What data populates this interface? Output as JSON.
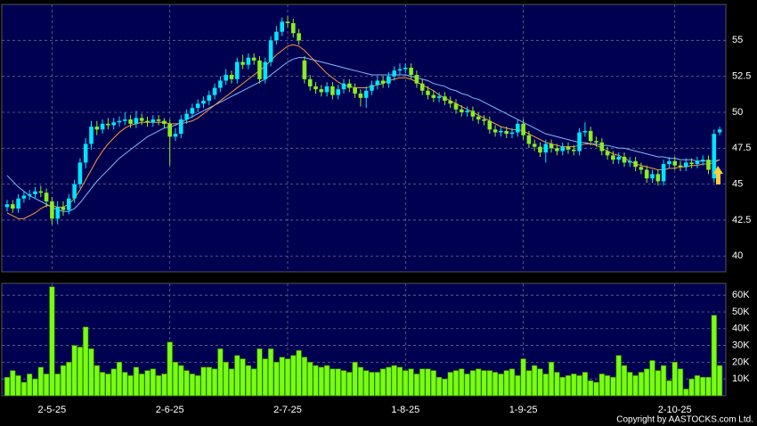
{
  "chart_data": [
    {
      "type": "candlestick",
      "categories": [
        null,
        null,
        null,
        null,
        null,
        null,
        null,
        null,
        "2-5-25",
        null,
        null,
        null,
        null,
        null,
        null,
        null,
        null,
        null,
        null,
        null,
        null,
        null,
        null,
        null,
        null,
        null,
        null,
        null,
        null,
        "2-6-25",
        null,
        null,
        null,
        null,
        null,
        null,
        null,
        null,
        null,
        null,
        null,
        null,
        null,
        null,
        null,
        null,
        null,
        null,
        null,
        null,
        "2-7-25",
        null,
        null,
        null,
        null,
        null,
        null,
        null,
        null,
        null,
        null,
        null,
        null,
        null,
        null,
        null,
        null,
        null,
        null,
        null,
        null,
        "1-8-25",
        null,
        null,
        null,
        null,
        null,
        null,
        null,
        null,
        null,
        null,
        null,
        null,
        null,
        null,
        null,
        null,
        null,
        null,
        null,
        null,
        "1-9-25",
        null,
        null,
        null,
        null,
        null,
        null,
        null,
        null,
        null,
        null,
        null,
        null,
        null,
        null,
        null,
        null,
        null,
        null,
        null,
        null,
        null,
        null,
        null,
        null,
        null,
        null,
        "2-10-25",
        null,
        null,
        null,
        null,
        null,
        null,
        null,
        null
      ],
      "open": [
        43.4,
        43.6,
        43.3,
        44.0,
        44.2,
        44.3,
        44.5,
        44.4,
        43.8,
        42.6,
        43.4,
        43.2,
        44.0,
        45.0,
        46.5,
        47.8,
        49.0,
        48.8,
        49.2,
        49.1,
        49.3,
        49.4,
        49.5,
        49.2,
        49.6,
        49.4,
        49.3,
        49.5,
        49.4,
        49.2,
        48.3,
        48.5,
        49.5,
        49.9,
        50.3,
        50.6,
        50.8,
        51.2,
        51.7,
        52.2,
        52.6,
        52.3,
        53.5,
        53.3,
        53.8,
        53.6,
        52.3,
        53.5,
        55.0,
        55.6,
        56.3,
        56.2,
        55.5,
        53.6,
        52.3,
        51.8,
        51.6,
        51.4,
        51.8,
        51.2,
        51.6,
        52.0,
        51.7,
        51.3,
        51.0,
        51.5,
        51.9,
        52.2,
        52.0,
        52.5,
        52.9,
        53.0,
        53.1,
        52.6,
        52.0,
        51.5,
        51.2,
        51.0,
        51.1,
        50.8,
        50.6,
        50.2,
        50.0,
        50.1,
        49.7,
        49.5,
        49.4,
        48.8,
        48.6,
        48.7,
        48.5,
        48.6,
        49.2,
        48.4,
        47.8,
        47.6,
        47.2,
        47.8,
        47.5,
        47.3,
        47.6,
        47.4,
        47.3,
        48.6,
        48.7,
        48.0,
        47.9,
        47.3,
        47.0,
        46.7,
        46.9,
        46.5,
        46.6,
        46.2,
        46.0,
        45.4,
        45.7,
        45.2,
        46.4,
        46.6,
        46.3,
        46.2,
        46.5,
        46.4,
        46.6,
        46.7,
        45.4,
        48.6
      ],
      "high": [
        43.9,
        43.9,
        44.3,
        44.5,
        44.6,
        44.8,
        44.9,
        44.7,
        44.1,
        43.8,
        43.8,
        44.3,
        45.3,
        46.8,
        48.2,
        49.4,
        49.4,
        49.5,
        49.6,
        49.6,
        49.7,
        50.0,
        49.8,
        50.1,
        49.9,
        49.7,
        49.8,
        49.8,
        49.6,
        49.5,
        48.9,
        49.8,
        50.2,
        50.6,
        50.9,
        51.1,
        51.5,
        52.0,
        52.5,
        53.0,
        52.9,
        53.8,
        54.0,
        54.1,
        54.1,
        53.9,
        53.8,
        55.3,
        56.0,
        56.6,
        56.7,
        56.5,
        55.8,
        53.9,
        52.6,
        52.1,
        51.9,
        52.1,
        52.1,
        51.9,
        52.3,
        52.3,
        52.0,
        51.6,
        51.8,
        52.2,
        52.5,
        52.5,
        52.8,
        53.2,
        53.4,
        53.4,
        53.4,
        52.9,
        52.3,
        51.8,
        51.5,
        51.4,
        51.4,
        51.1,
        50.9,
        50.5,
        50.4,
        50.4,
        50.0,
        49.8,
        49.7,
        49.1,
        49.0,
        49.0,
        48.9,
        49.5,
        49.5,
        48.7,
        48.1,
        47.9,
        48.1,
        48.1,
        47.8,
        47.9,
        47.9,
        47.7,
        48.9,
        49.3,
        49.0,
        48.3,
        48.2,
        47.6,
        47.3,
        47.2,
        47.2,
        46.9,
        46.9,
        46.5,
        46.3,
        46.0,
        46.0,
        46.7,
        46.9,
        46.9,
        46.6,
        46.8,
        46.8,
        46.9,
        47.0,
        47.0,
        48.8,
        49.0
      ],
      "low": [
        43.1,
        43.0,
        43.0,
        43.7,
        43.9,
        44.0,
        44.1,
        43.4,
        42.2,
        42.2,
        42.8,
        42.9,
        43.7,
        44.7,
        46.1,
        47.4,
        48.4,
        48.5,
        48.8,
        48.8,
        49.0,
        49.1,
        48.9,
        48.9,
        49.1,
        49.0,
        49.0,
        49.1,
        48.9,
        46.3,
        48.0,
        48.2,
        49.2,
        49.6,
        50.0,
        50.3,
        50.5,
        50.9,
        51.4,
        51.9,
        52.0,
        52.0,
        53.0,
        53.0,
        53.3,
        52.0,
        52.0,
        53.2,
        54.7,
        55.3,
        55.9,
        55.2,
        54.7,
        52.0,
        51.5,
        51.3,
        51.1,
        51.1,
        50.9,
        50.9,
        51.3,
        51.4,
        51.0,
        50.4,
        50.3,
        51.2,
        51.6,
        51.7,
        51.7,
        52.2,
        52.6,
        52.7,
        52.3,
        51.7,
        51.2,
        50.9,
        50.7,
        50.7,
        50.5,
        50.3,
        49.9,
        49.7,
        49.7,
        49.4,
        49.2,
        49.1,
        48.5,
        48.3,
        48.3,
        48.2,
        48.2,
        48.3,
        48.1,
        47.5,
        47.3,
        46.9,
        46.5,
        47.2,
        47.0,
        47.0,
        47.1,
        47.0,
        47.0,
        48.3,
        47.7,
        47.6,
        47.0,
        46.7,
        46.4,
        46.4,
        46.2,
        46.2,
        45.9,
        45.7,
        45.1,
        45.1,
        44.9,
        44.9,
        46.1,
        46.0,
        45.9,
        45.9,
        46.1,
        46.1,
        46.3,
        45.7,
        45.1,
        48.4
      ],
      "close": [
        43.6,
        43.3,
        44.0,
        44.2,
        44.3,
        44.5,
        44.4,
        43.8,
        42.6,
        43.4,
        43.2,
        44.0,
        45.0,
        46.5,
        47.8,
        49.0,
        48.8,
        49.2,
        49.1,
        49.3,
        49.4,
        49.5,
        49.2,
        49.6,
        49.4,
        49.3,
        49.5,
        49.4,
        49.2,
        48.3,
        48.5,
        49.5,
        49.9,
        50.3,
        50.6,
        50.8,
        51.2,
        51.7,
        52.2,
        52.6,
        52.3,
        53.5,
        53.3,
        53.8,
        53.6,
        52.3,
        53.5,
        55.0,
        55.6,
        56.3,
        56.2,
        55.5,
        55.0,
        52.3,
        51.8,
        51.6,
        51.4,
        51.8,
        51.2,
        51.6,
        52.0,
        51.7,
        51.3,
        51.0,
        51.5,
        51.9,
        52.2,
        52.0,
        52.5,
        52.9,
        53.0,
        53.1,
        52.6,
        52.0,
        51.5,
        51.2,
        51.0,
        51.1,
        50.8,
        50.6,
        50.2,
        50.0,
        50.1,
        49.7,
        49.5,
        49.4,
        48.8,
        48.6,
        48.7,
        48.5,
        48.6,
        49.2,
        48.4,
        47.8,
        47.6,
        47.2,
        47.8,
        47.5,
        47.3,
        47.6,
        47.4,
        47.3,
        48.6,
        48.7,
        48.0,
        47.9,
        47.3,
        47.0,
        46.7,
        46.9,
        46.5,
        46.6,
        46.2,
        46.0,
        45.4,
        45.7,
        45.2,
        46.4,
        46.6,
        46.3,
        46.2,
        46.5,
        46.4,
        46.6,
        46.7,
        46.0,
        48.5,
        48.8
      ],
      "up_color": "#00e5ff",
      "down_color": "#88ee22",
      "series": [
        {
          "color": "#7fb8ff",
          "values": [
            45.6,
            45.2,
            44.8,
            44.5,
            44.2,
            44.0,
            43.8,
            43.6,
            43.4,
            43.2,
            43.1,
            43.1,
            43.3,
            43.7,
            44.2,
            44.7,
            45.2,
            45.6,
            46.0,
            46.4,
            46.8,
            47.1,
            47.4,
            47.7,
            48.0,
            48.3,
            48.5,
            48.7,
            48.9,
            49.0,
            49.1,
            49.3,
            49.5,
            49.7,
            49.9,
            50.1,
            50.3,
            50.5,
            50.7,
            50.9,
            51.1,
            51.3,
            51.5,
            51.7,
            51.9,
            52.1,
            52.3,
            52.6,
            52.9,
            53.2,
            53.5,
            53.7,
            53.8,
            53.8,
            53.7,
            53.6,
            53.5,
            53.4,
            53.3,
            53.2,
            53.1,
            53.0,
            52.9,
            52.8,
            52.7,
            52.6,
            52.6,
            52.6,
            52.6,
            52.6,
            52.6,
            52.6,
            52.5,
            52.4,
            52.3,
            52.2,
            52.0,
            51.9,
            51.8,
            51.6,
            51.5,
            51.3,
            51.2,
            51.0,
            50.9,
            50.7,
            50.5,
            50.3,
            50.1,
            49.9,
            49.7,
            49.5,
            49.3,
            49.1,
            48.9,
            48.7,
            48.5,
            48.4,
            48.3,
            48.2,
            48.1,
            48.0,
            47.9,
            47.9,
            47.8,
            47.8,
            47.7,
            47.7,
            47.6,
            47.5,
            47.5,
            47.4,
            47.3,
            47.2,
            47.1,
            47.0,
            46.9,
            46.9,
            46.8,
            46.8,
            46.7,
            46.7,
            46.7,
            46.6,
            46.6,
            46.6,
            46.6,
            46.7
          ]
        },
        {
          "color": "#ff9933",
          "values": [
            43.0,
            42.8,
            42.6,
            42.6,
            42.8,
            43.0,
            43.3,
            43.5,
            43.5,
            43.4,
            43.4,
            43.6,
            44.0,
            44.6,
            45.3,
            46.0,
            46.7,
            47.3,
            47.8,
            48.2,
            48.6,
            48.9,
            49.1,
            49.2,
            49.3,
            49.3,
            49.3,
            49.3,
            49.3,
            49.2,
            49.2,
            49.2,
            49.3,
            49.4,
            49.6,
            49.9,
            50.2,
            50.5,
            50.8,
            51.1,
            51.4,
            51.7,
            52.0,
            52.3,
            52.6,
            52.9,
            53.2,
            53.6,
            54.0,
            54.3,
            54.6,
            54.7,
            54.6,
            54.3,
            53.9,
            53.5,
            53.1,
            52.7,
            52.4,
            52.1,
            51.9,
            51.8,
            51.7,
            51.7,
            51.7,
            51.8,
            51.9,
            52.0,
            52.2,
            52.3,
            52.4,
            52.4,
            52.3,
            52.1,
            51.9,
            51.7,
            51.5,
            51.2,
            51.0,
            50.8,
            50.6,
            50.4,
            50.2,
            50.0,
            49.8,
            49.6,
            49.4,
            49.2,
            49.0,
            48.9,
            48.8,
            48.8,
            48.7,
            48.5,
            48.3,
            48.1,
            47.9,
            47.8,
            47.7,
            47.6,
            47.6,
            47.6,
            47.7,
            47.8,
            47.8,
            47.7,
            47.5,
            47.3,
            47.1,
            47.0,
            46.8,
            46.6,
            46.4,
            46.3,
            46.2,
            46.1,
            46.0,
            46.0,
            46.1,
            46.1,
            46.2,
            46.2,
            46.3,
            46.3,
            46.4,
            46.4,
            46.5,
            46.7
          ]
        }
      ],
      "ylim": [
        38.9,
        57.5
      ],
      "yticks": [
        40,
        42.5,
        45,
        47.5,
        50,
        52.5,
        55
      ],
      "grid": true
    },
    {
      "type": "bar",
      "values": [
        11000,
        15000,
        12000,
        8000,
        13000,
        10000,
        17000,
        13000,
        65000,
        13000,
        18000,
        20000,
        30000,
        29000,
        41000,
        28000,
        18000,
        14000,
        13000,
        16000,
        20000,
        14000,
        12000,
        17000,
        13000,
        15000,
        16000,
        12000,
        13000,
        32000,
        20000,
        18000,
        15000,
        13000,
        12000,
        17000,
        17000,
        16000,
        28000,
        20000,
        16000,
        24000,
        22000,
        18000,
        16000,
        28000,
        22000,
        28000,
        20000,
        23000,
        22000,
        24000,
        27000,
        23000,
        20000,
        18000,
        17000,
        18000,
        16000,
        16000,
        15000,
        14000,
        20000,
        17000,
        15000,
        14000,
        14000,
        16000,
        17000,
        18000,
        17000,
        15000,
        16000,
        13000,
        16000,
        16000,
        15000,
        11000,
        10000,
        14000,
        15000,
        16000,
        13000,
        15000,
        16000,
        15000,
        15000,
        14000,
        13000,
        15000,
        16000,
        12000,
        22000,
        15000,
        18000,
        16000,
        13000,
        20000,
        14000,
        11000,
        12000,
        13000,
        12000,
        14000,
        9000,
        8000,
        13000,
        12000,
        11000,
        24000,
        18000,
        14000,
        12000,
        14000,
        16000,
        21000,
        15000,
        18000,
        9000,
        20000,
        16000,
        4000,
        10000,
        12000,
        11000,
        11000,
        48000,
        18000
      ],
      "color": "#77ff11",
      "ylim": [
        0,
        67000
      ],
      "yticks": [
        {
          "value": 10000,
          "label": "10K"
        },
        {
          "value": 20000,
          "label": "20K"
        },
        {
          "value": 30000,
          "label": "30K"
        },
        {
          "value": 40000,
          "label": "40K"
        },
        {
          "value": 50000,
          "label": "50K"
        },
        {
          "value": 60000,
          "label": "60K"
        }
      ],
      "grid": true
    }
  ],
  "footer": "Copyright by AASTOCKS.com Ltd."
}
